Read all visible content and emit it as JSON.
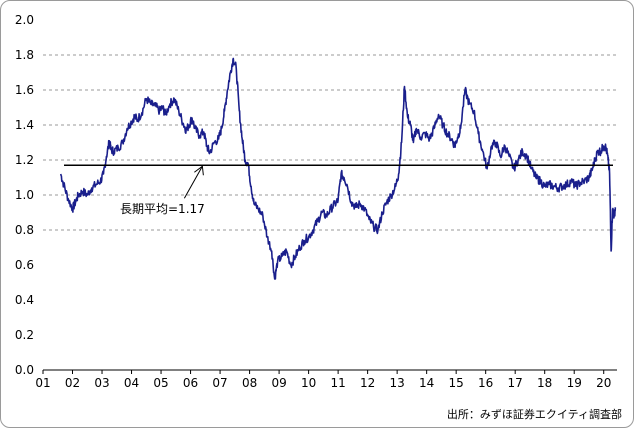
{
  "chart_data": {
    "type": "line",
    "title": "",
    "xlabel": "",
    "ylabel": "",
    "x_tick_labels": [
      "01",
      "02",
      "03",
      "04",
      "05",
      "06",
      "07",
      "08",
      "09",
      "10",
      "11",
      "12",
      "13",
      "14",
      "15",
      "16",
      "17",
      "18",
      "19",
      "20"
    ],
    "y_tick_labels": [
      "0.0",
      "0.2",
      "0.4",
      "0.6",
      "0.8",
      "1.0",
      "1.2",
      "1.4",
      "1.6",
      "1.8",
      "2.0"
    ],
    "xlim": [
      2001.0,
      2020.45
    ],
    "ylim": [
      0.0,
      2.0
    ],
    "grid": "horizontal dashed at 0.8, 1.0, 1.2, 1.4, 1.6, 1.8",
    "series": [
      {
        "color": "#1a1f8c",
        "x": [
          2001.6,
          2001.7,
          2001.85,
          2002.0,
          2002.1,
          2002.2,
          2002.35,
          2002.5,
          2002.65,
          2002.8,
          2002.95,
          2003.05,
          2003.15,
          2003.25,
          2003.3,
          2003.4,
          2003.55,
          2003.7,
          2003.85,
          2004.0,
          2004.1,
          2004.2,
          2004.35,
          2004.5,
          2004.65,
          2004.8,
          2004.95,
          2005.05,
          2005.15,
          2005.3,
          2005.45,
          2005.6,
          2005.75,
          2005.85,
          2005.95,
          2006.05,
          2006.15,
          2006.3,
          2006.45,
          2006.55,
          2006.65,
          2006.8,
          2006.95,
          2007.05,
          2007.15,
          2007.25,
          2007.35,
          2007.45,
          2007.55,
          2007.65,
          2007.75,
          2007.85,
          2007.95,
          2008.05,
          2008.15,
          2008.3,
          2008.45,
          2008.6,
          2008.75,
          2008.85,
          2008.95,
          2009.1,
          2009.25,
          2009.4,
          2009.55,
          2009.7,
          2009.85,
          2010.0,
          2010.15,
          2010.3,
          2010.45,
          2010.6,
          2010.75,
          2010.9,
          2011.0,
          2011.1,
          2011.2,
          2011.3,
          2011.45,
          2011.6,
          2011.75,
          2011.9,
          2012.05,
          2012.2,
          2012.35,
          2012.5,
          2012.65,
          2012.8,
          2012.95,
          2013.05,
          2013.15,
          2013.25,
          2013.35,
          2013.45,
          2013.55,
          2013.65,
          2013.8,
          2013.95,
          2014.1,
          2014.25,
          2014.4,
          2014.55,
          2014.7,
          2014.85,
          2014.95,
          2015.05,
          2015.15,
          2015.3,
          2015.45,
          2015.6,
          2015.75,
          2015.9,
          2016.05,
          2016.2,
          2016.35,
          2016.5,
          2016.65,
          2016.8,
          2016.95,
          2017.1,
          2017.25,
          2017.4,
          2017.55,
          2017.7,
          2017.85,
          2018.0,
          2018.15,
          2018.3,
          2018.45,
          2018.6,
          2018.75,
          2018.9,
          2019.05,
          2019.2,
          2019.35,
          2019.5,
          2019.6,
          2019.7,
          2019.8,
          2019.9,
          2020.0,
          2020.08,
          2020.15,
          2020.2,
          2020.25,
          2020.3,
          2020.35,
          2020.4
        ],
        "values": [
          1.12,
          1.06,
          0.98,
          0.92,
          0.96,
          1.0,
          1.02,
          1.0,
          1.04,
          1.06,
          1.08,
          1.12,
          1.22,
          1.31,
          1.26,
          1.25,
          1.27,
          1.3,
          1.38,
          1.42,
          1.45,
          1.43,
          1.47,
          1.55,
          1.52,
          1.51,
          1.48,
          1.5,
          1.46,
          1.52,
          1.55,
          1.48,
          1.41,
          1.37,
          1.4,
          1.44,
          1.38,
          1.34,
          1.36,
          1.28,
          1.24,
          1.3,
          1.32,
          1.38,
          1.48,
          1.6,
          1.7,
          1.78,
          1.72,
          1.48,
          1.32,
          1.2,
          1.18,
          1.05,
          0.95,
          0.92,
          0.88,
          0.76,
          0.68,
          0.52,
          0.62,
          0.65,
          0.68,
          0.6,
          0.65,
          0.7,
          0.74,
          0.76,
          0.8,
          0.85,
          0.9,
          0.88,
          0.92,
          0.95,
          0.97,
          1.12,
          1.1,
          1.06,
          0.96,
          0.93,
          0.95,
          0.92,
          0.86,
          0.82,
          0.8,
          0.9,
          0.96,
          1.0,
          1.05,
          1.12,
          1.3,
          1.62,
          1.45,
          1.4,
          1.3,
          1.38,
          1.33,
          1.35,
          1.32,
          1.38,
          1.46,
          1.4,
          1.35,
          1.32,
          1.28,
          1.33,
          1.38,
          1.6,
          1.52,
          1.48,
          1.35,
          1.25,
          1.15,
          1.28,
          1.3,
          1.22,
          1.28,
          1.22,
          1.15,
          1.2,
          1.25,
          1.22,
          1.15,
          1.1,
          1.08,
          1.05,
          1.06,
          1.05,
          1.04,
          1.05,
          1.06,
          1.08,
          1.05,
          1.07,
          1.08,
          1.1,
          1.14,
          1.2,
          1.25,
          1.25,
          1.28,
          1.27,
          1.2,
          1.12,
          0.68,
          0.92,
          0.88,
          0.93
        ]
      }
    ],
    "reference_line": {
      "value": 1.17,
      "color": "#000000"
    },
    "annotations": [
      {
        "text": "長期平均=1.17",
        "arrow_to": {
          "x": 2006.4,
          "y": 1.17
        }
      }
    ],
    "source_note": "出所：みずほ証券エクイティ調査部"
  }
}
